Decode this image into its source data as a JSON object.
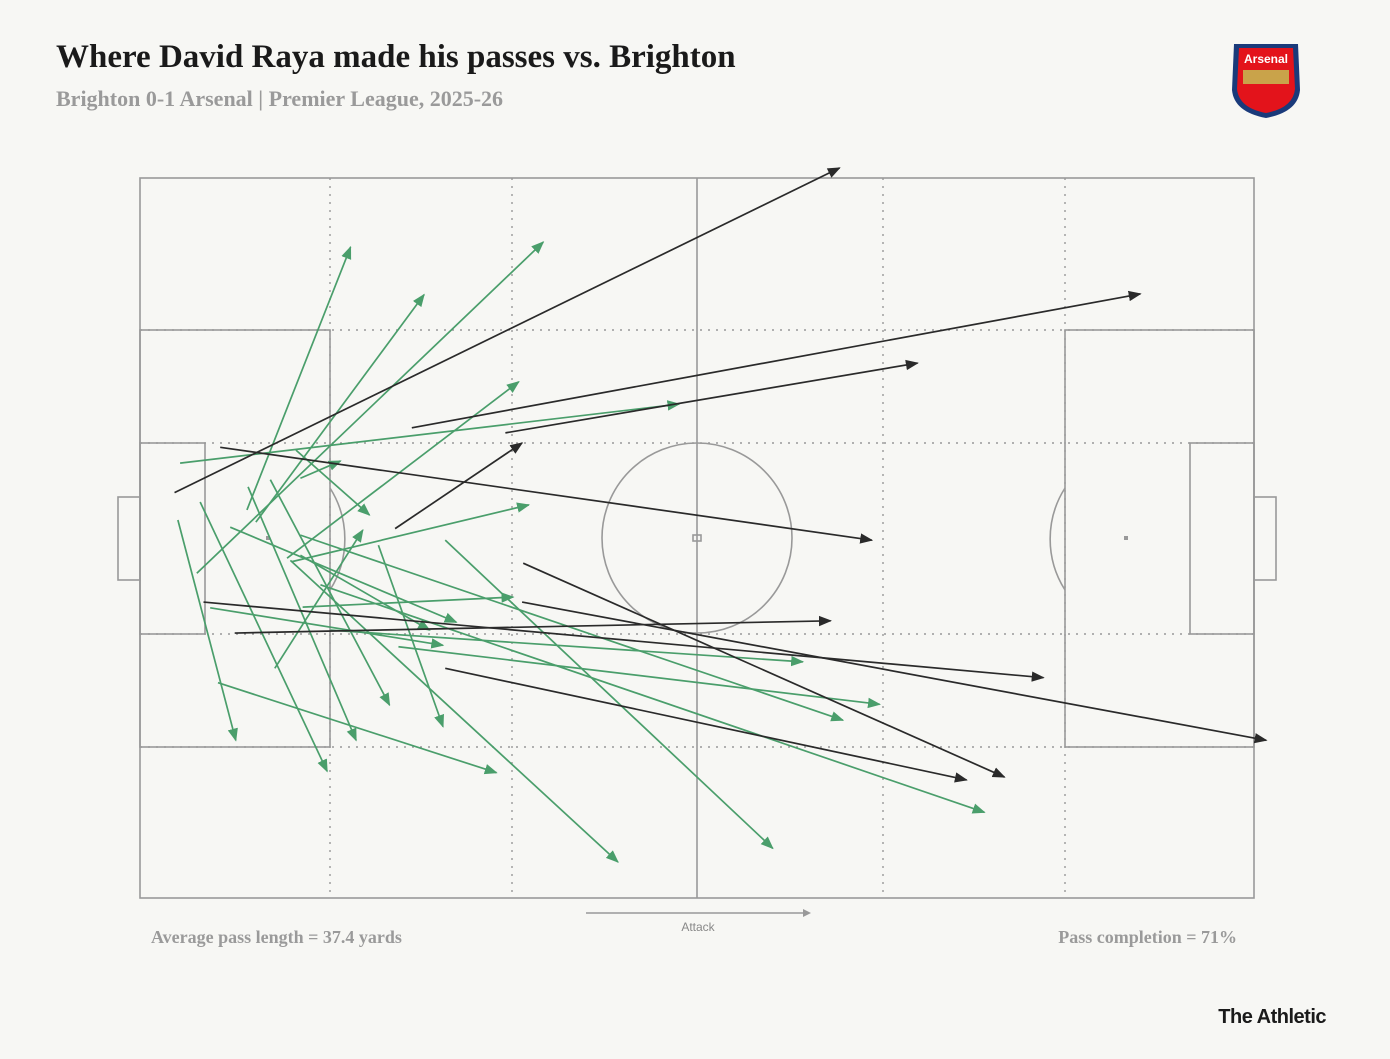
{
  "chart_data": {
    "type": "passmap",
    "title": "Where David Raya made his passes vs. Brighton",
    "subtitle": "Brighton 0-1 Arsenal | Premier League, 2025-26",
    "xlim": [
      0,
      100
    ],
    "ylim": [
      0,
      100
    ],
    "direction_label": "Attack",
    "stats": [
      "Average pass length = 37.4 yards",
      "Pass completion = 71%"
    ],
    "team": "Arsenal",
    "source": "The Athletic",
    "series": [
      {
        "color": "#4a9e6b",
        "passes": [
          [
            3.6,
            60.4,
            48.4,
            68.6
          ],
          [
            9.6,
            53.9,
            18.9,
            90.4
          ],
          [
            10.4,
            52.2,
            25.5,
            83.8
          ],
          [
            5.1,
            45.1,
            36.2,
            91.1
          ],
          [
            13.2,
            47.2,
            34.0,
            71.7
          ],
          [
            12.1,
            31.9,
            20.0,
            51.1
          ],
          [
            14.4,
            58.3,
            18.0,
            60.7
          ],
          [
            14.0,
            62.2,
            20.6,
            53.2
          ],
          [
            13.6,
            46.7,
            34.9,
            54.6
          ],
          [
            14.6,
            40.4,
            33.5,
            41.8
          ],
          [
            3.4,
            52.5,
            8.6,
            21.9
          ],
          [
            5.4,
            55.0,
            16.8,
            17.6
          ],
          [
            9.7,
            57.1,
            19.4,
            21.9
          ],
          [
            11.7,
            58.1,
            22.4,
            26.8
          ],
          [
            21.4,
            49.0,
            27.2,
            23.8
          ],
          [
            8.1,
            51.5,
            28.4,
            38.3
          ],
          [
            14.4,
            50.4,
            63.1,
            24.7
          ],
          [
            13.5,
            46.9,
            42.9,
            5.0
          ],
          [
            27.4,
            49.7,
            56.8,
            6.9
          ],
          [
            7.0,
            29.9,
            32.0,
            17.4
          ],
          [
            6.3,
            40.3,
            27.2,
            35.1
          ],
          [
            17.1,
            37.2,
            59.5,
            32.8
          ],
          [
            23.2,
            34.9,
            66.4,
            26.9
          ],
          [
            16.2,
            43.5,
            75.8,
            11.9
          ],
          [
            14.4,
            47.6,
            26.0,
            37.2
          ]
        ]
      },
      {
        "color": "#2a2a2a",
        "passes": [
          [
            3.1,
            56.3,
            62.8,
            101.4
          ],
          [
            24.4,
            65.3,
            89.8,
            83.9
          ],
          [
            32.8,
            64.6,
            69.8,
            74.3
          ],
          [
            7.2,
            62.6,
            65.7,
            49.7
          ],
          [
            22.9,
            51.3,
            34.3,
            63.2
          ],
          [
            5.7,
            41.1,
            81.1,
            30.6
          ],
          [
            8.5,
            36.8,
            62.0,
            38.5
          ],
          [
            34.3,
            41.1,
            101.1,
            21.9
          ],
          [
            34.4,
            46.5,
            77.6,
            16.8
          ],
          [
            27.4,
            31.9,
            74.2,
            16.4
          ]
        ]
      }
    ]
  }
}
